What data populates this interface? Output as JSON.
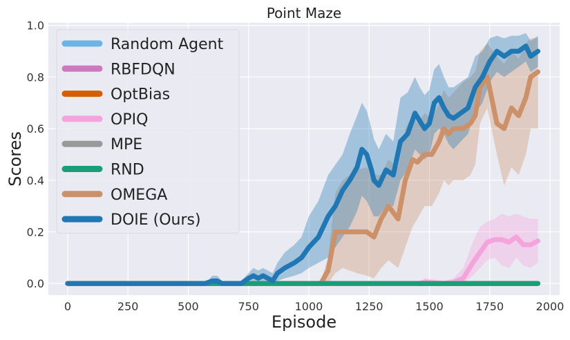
{
  "chart_data": {
    "type": "line",
    "title": "Point Maze",
    "xlabel": "Episode",
    "ylabel": "Scores",
    "xlim": [
      -80,
      2040
    ],
    "ylim": [
      -0.045,
      1.01
    ],
    "xticks": [
      0,
      250,
      500,
      750,
      1000,
      1250,
      1500,
      1750,
      2000
    ],
    "yticks": [
      0.0,
      0.2,
      0.4,
      0.6,
      0.8,
      1.0
    ],
    "xtick_labels": [
      "0",
      "250",
      "500",
      "750",
      "1000",
      "1250",
      "1500",
      "1750",
      "2000"
    ],
    "ytick_labels": [
      "0.0",
      "0.2",
      "0.4",
      "0.6",
      "0.8",
      "1.0"
    ],
    "grid": true,
    "legend_position": "upper-left",
    "series": [
      {
        "name": "Random Agent",
        "color": "#6ab4e8",
        "x": [
          0,
          1950
        ],
        "y": [
          0,
          0
        ]
      },
      {
        "name": "RBFDQN",
        "color": "#cc79c0",
        "x": [
          0,
          1950
        ],
        "y": [
          0,
          0
        ]
      },
      {
        "name": "OptBias",
        "color": "#d55e00",
        "x": [
          0,
          1950
        ],
        "y": [
          0,
          0
        ]
      },
      {
        "name": "OPIQ",
        "color": "#f5a3dc",
        "x": [
          0,
          1450,
          1480,
          1520,
          1560,
          1600,
          1640,
          1680,
          1710,
          1740,
          1770,
          1800,
          1830,
          1860,
          1890,
          1920,
          1950
        ],
        "y": [
          0,
          0,
          0.005,
          0.003,
          0.0,
          0.005,
          0.02,
          0.08,
          0.12,
          0.16,
          0.17,
          0.17,
          0.16,
          0.18,
          0.15,
          0.15,
          0.165
        ],
        "lower": [
          0,
          0,
          0,
          0,
          0,
          0,
          0,
          0.03,
          0.06,
          0.09,
          0.1,
          0.07,
          0.06,
          0.1,
          0.07,
          0.06,
          0.08
        ],
        "upper": [
          0,
          0,
          0.02,
          0.015,
          0.01,
          0.02,
          0.06,
          0.16,
          0.22,
          0.24,
          0.25,
          0.27,
          0.26,
          0.27,
          0.26,
          0.25,
          0.25
        ]
      },
      {
        "name": "MPE",
        "color": "#999999",
        "x": [
          0,
          1950
        ],
        "y": [
          0,
          0
        ]
      },
      {
        "name": "RND",
        "color": "#1a9e77",
        "x": [
          0,
          1950
        ],
        "y": [
          0,
          0
        ]
      },
      {
        "name": "OMEGA",
        "color": "#cc9168",
        "x": [
          0,
          760,
          800,
          850,
          950,
          1050,
          1080,
          1110,
          1140,
          1200,
          1240,
          1270,
          1300,
          1330,
          1370,
          1400,
          1430,
          1450,
          1480,
          1510,
          1540,
          1560,
          1580,
          1600,
          1640,
          1670,
          1690,
          1710,
          1740,
          1780,
          1810,
          1840,
          1870,
          1900,
          1920,
          1950
        ],
        "y": [
          0,
          0,
          0,
          0,
          0,
          0,
          0.05,
          0.2,
          0.2,
          0.2,
          0.2,
          0.18,
          0.25,
          0.3,
          0.25,
          0.4,
          0.48,
          0.47,
          0.5,
          0.5,
          0.55,
          0.6,
          0.58,
          0.6,
          0.6,
          0.62,
          0.65,
          0.76,
          0.8,
          0.62,
          0.6,
          0.68,
          0.65,
          0.72,
          0.8,
          0.82
        ],
        "lower": [
          0,
          0,
          0,
          0,
          0,
          0,
          0,
          0.04,
          0.06,
          0.04,
          0.03,
          0.02,
          0.06,
          0.09,
          0.06,
          0.14,
          0.22,
          0.25,
          0.3,
          0.3,
          0.35,
          0.4,
          0.38,
          0.4,
          0.4,
          0.42,
          0.46,
          0.62,
          0.68,
          0.5,
          0.38,
          0.45,
          0.42,
          0.5,
          0.6,
          0.6
        ],
        "upper": [
          0,
          0,
          0.01,
          0.01,
          0.01,
          0.01,
          0.1,
          0.35,
          0.4,
          0.44,
          0.45,
          0.42,
          0.42,
          0.48,
          0.45,
          0.6,
          0.65,
          0.62,
          0.66,
          0.64,
          0.7,
          0.75,
          0.72,
          0.74,
          0.78,
          0.8,
          0.82,
          0.9,
          0.93,
          0.88,
          0.85,
          0.9,
          0.87,
          0.93,
          0.95,
          0.95
        ]
      },
      {
        "name": "DOIE (Ours)",
        "color": "#1f77b4",
        "x": [
          0,
          570,
          600,
          620,
          640,
          680,
          720,
          750,
          770,
          790,
          810,
          830,
          850,
          870,
          900,
          940,
          970,
          1000,
          1040,
          1080,
          1110,
          1140,
          1170,
          1200,
          1220,
          1240,
          1260,
          1270,
          1290,
          1320,
          1350,
          1380,
          1410,
          1440,
          1460,
          1480,
          1500,
          1520,
          1540,
          1560,
          1580,
          1600,
          1630,
          1660,
          1690,
          1720,
          1750,
          1780,
          1810,
          1840,
          1870,
          1900,
          1920,
          1950
        ],
        "y": [
          0,
          0,
          0.01,
          0.01,
          0.0,
          0.0,
          0.0,
          0.02,
          0.03,
          0.02,
          0.03,
          0.02,
          0.01,
          0.04,
          0.06,
          0.08,
          0.1,
          0.14,
          0.18,
          0.26,
          0.3,
          0.36,
          0.4,
          0.45,
          0.52,
          0.5,
          0.44,
          0.4,
          0.38,
          0.44,
          0.42,
          0.55,
          0.58,
          0.66,
          0.63,
          0.6,
          0.62,
          0.7,
          0.72,
          0.68,
          0.65,
          0.64,
          0.66,
          0.68,
          0.76,
          0.8,
          0.86,
          0.9,
          0.88,
          0.9,
          0.9,
          0.92,
          0.88,
          0.9
        ],
        "lower": [
          0,
          0,
          0,
          0,
          0,
          0,
          0,
          0.005,
          0.01,
          0.005,
          0.01,
          0.005,
          0,
          0.01,
          0.02,
          0.03,
          0.04,
          0.06,
          0.08,
          0.1,
          0.14,
          0.18,
          0.22,
          0.28,
          0.34,
          0.32,
          0.28,
          0.26,
          0.26,
          0.3,
          0.3,
          0.4,
          0.44,
          0.52,
          0.5,
          0.48,
          0.5,
          0.58,
          0.6,
          0.58,
          0.54,
          0.52,
          0.55,
          0.58,
          0.66,
          0.7,
          0.78,
          0.82,
          0.8,
          0.82,
          0.84,
          0.86,
          0.82,
          0.84
        ],
        "upper": [
          0,
          0,
          0.03,
          0.03,
          0.01,
          0.01,
          0.01,
          0.04,
          0.06,
          0.05,
          0.06,
          0.05,
          0.04,
          0.08,
          0.12,
          0.15,
          0.18,
          0.26,
          0.32,
          0.42,
          0.46,
          0.5,
          0.58,
          0.65,
          0.7,
          0.67,
          0.6,
          0.56,
          0.52,
          0.58,
          0.55,
          0.72,
          0.74,
          0.8,
          0.76,
          0.73,
          0.75,
          0.83,
          0.85,
          0.8,
          0.76,
          0.76,
          0.78,
          0.8,
          0.88,
          0.9,
          0.95,
          0.96,
          0.95,
          0.96,
          0.96,
          0.97,
          0.94,
          0.96
        ]
      }
    ]
  }
}
